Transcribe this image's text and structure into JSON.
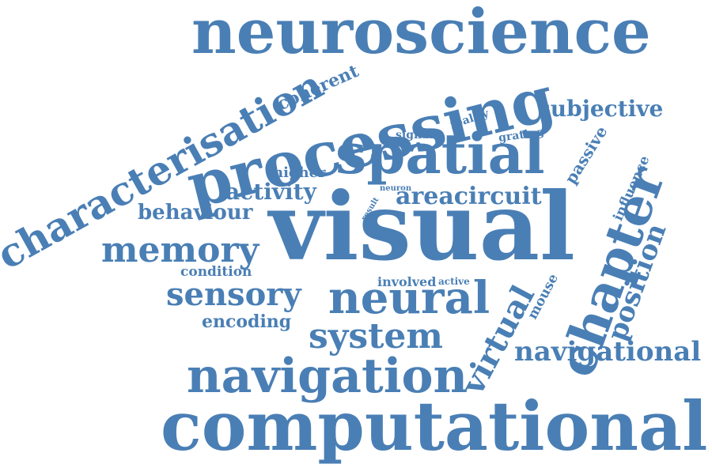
{
  "colors": {
    "word": "#4a7fb5",
    "background": "#ffffff"
  },
  "words": {
    "neuroscience": "neuroscience",
    "computational": "computational",
    "navigation": "navigation",
    "processing": "processing",
    "characterisation": "characterisation",
    "spatial": "spatial",
    "visual": "visual",
    "neural": "neural",
    "system": "system",
    "sensory": "sensory",
    "memory": "memory",
    "behaviour": "behaviour",
    "activity": "activity",
    "areacircuit": "areacircuit",
    "encoding": "encoding",
    "condition": "condition",
    "higher": "higher",
    "coherent": "coherent",
    "signal": "signal",
    "reality": "reality",
    "grating": "grating",
    "neuron": "neuron",
    "result": "result",
    "involved": "involved",
    "active": "active",
    "subjective": "subjective",
    "passive": "passive",
    "chapter": "chapter",
    "influence": "influence",
    "position": "position",
    "mouse": "mouse",
    "virtual": "virtual",
    "navigational": "navigational"
  }
}
